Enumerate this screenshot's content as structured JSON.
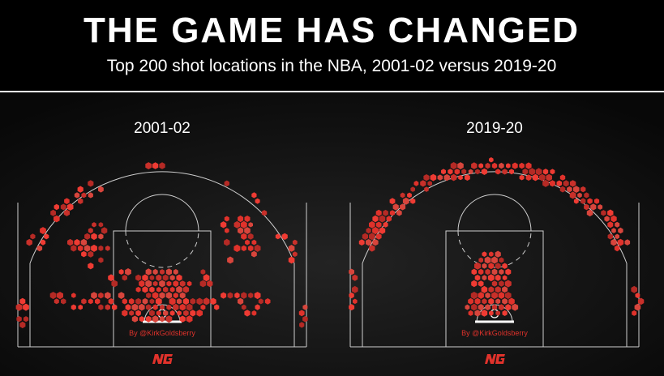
{
  "header": {
    "title": "THE GAME HAS CHANGED",
    "subtitle": "Top 200 shot locations in the NBA, 2001-02 versus 2019-20"
  },
  "panels": [
    {
      "label": "2001-02",
      "credit": "By @KirkGoldsberry"
    },
    {
      "label": "2019-20",
      "credit": "By @KirkGoldsberry"
    }
  ]
}
